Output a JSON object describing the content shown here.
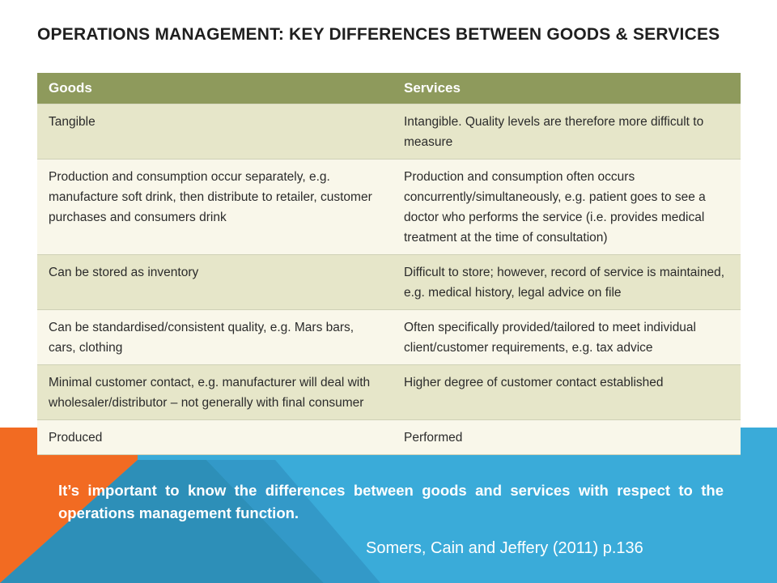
{
  "title": "OPERATIONS MANAGEMENT: KEY DIFFERENCES BETWEEN GOODS & SERVICES",
  "table": {
    "headers": [
      "Goods",
      "Services"
    ],
    "rows": [
      [
        "Tangible",
        "Intangible. Quality levels are therefore more difficult to measure"
      ],
      [
        "Production and consumption occur separately, e.g. manufacture soft drink, then distribute to retailer, customer purchases and consumers drink",
        "Production and consumption often occurs concurrently/simultaneously, e.g. patient goes to see a doctor who performs the service (i.e. provides medical treatment at the time of consultation)"
      ],
      [
        "Can be stored as inventory",
        "Difficult to store; however, record of service is maintained, e.g. medical history, legal advice on file"
      ],
      [
        "Can be standardised/consistent quality, e.g. Mars bars, cars, clothing",
        "Often specifically provided/tailored to meet individual client/customer requirements, e.g. tax advice"
      ],
      [
        "Minimal customer contact, e.g. manufacturer will deal with wholesaler/distributor – not generally with final consumer",
        "Higher degree of customer contact established"
      ],
      [
        "Produced",
        "Performed"
      ]
    ]
  },
  "note": "It’s important to know the differences between goods and services with respect to the operations management function.",
  "citation": "Somers, Cain and Jeffery (2011) p.136",
  "colors": {
    "header_bg": "#8e9a5c",
    "row_odd": "#e6e6c9",
    "row_even": "#f9f7ea",
    "band_orange": "#f26b22",
    "band_blue": "#3aabd9",
    "band_dark_blue": "#2d8fb8"
  }
}
